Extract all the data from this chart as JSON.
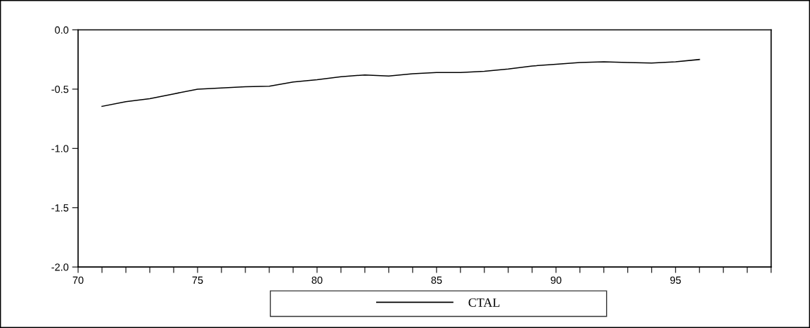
{
  "chart_data": {
    "type": "line",
    "x": [
      71,
      72,
      73,
      74,
      75,
      76,
      77,
      78,
      79,
      80,
      81,
      82,
      83,
      84,
      85,
      86,
      87,
      88,
      89,
      90,
      91,
      92,
      93,
      94,
      95,
      96
    ],
    "series": [
      {
        "name": "CTAL",
        "color": "#000000",
        "values": [
          -0.645,
          -0.605,
          -0.58,
          -0.54,
          -0.5,
          -0.49,
          -0.48,
          -0.475,
          -0.44,
          -0.42,
          -0.395,
          -0.38,
          -0.39,
          -0.37,
          -0.36,
          -0.36,
          -0.35,
          -0.33,
          -0.305,
          -0.29,
          -0.275,
          -0.27,
          -0.275,
          -0.28,
          -0.27,
          -0.25
        ]
      }
    ],
    "xlim": [
      70,
      99
    ],
    "xticks": [
      70,
      {
        "value": 71,
        "label": null
      },
      {
        "value": 72,
        "label": null
      },
      {
        "value": 73,
        "label": null
      },
      {
        "value": 74,
        "label": null
      },
      75,
      {
        "value": 76,
        "label": null
      },
      {
        "value": 77,
        "label": null
      },
      {
        "value": 78,
        "label": null
      },
      {
        "value": 79,
        "label": null
      },
      80,
      {
        "value": 81,
        "label": null
      },
      {
        "value": 82,
        "label": null
      },
      {
        "value": 83,
        "label": null
      },
      {
        "value": 84,
        "label": null
      },
      85,
      {
        "value": 86,
        "label": null
      },
      {
        "value": 87,
        "label": null
      },
      {
        "value": 88,
        "label": null
      },
      {
        "value": 89,
        "label": null
      },
      90,
      {
        "value": 91,
        "label": null
      },
      {
        "value": 92,
        "label": null
      },
      {
        "value": 93,
        "label": null
      },
      {
        "value": 94,
        "label": null
      },
      95,
      {
        "value": 96,
        "label": null
      },
      {
        "value": 97,
        "label": null
      },
      {
        "value": 98,
        "label": null
      },
      {
        "value": 99,
        "label": null
      }
    ],
    "ylim": [
      -2.0,
      0.0
    ],
    "yticks": [
      {
        "value": 0.0,
        "label": "0.0"
      },
      {
        "value": -0.5,
        "label": "-0.5"
      },
      {
        "value": -1.0,
        "label": "-1.0"
      },
      {
        "value": -1.5,
        "label": "-1.5"
      },
      {
        "value": -2.0,
        "label": "-2.0"
      }
    ],
    "grid": false,
    "legend": "bottom",
    "marker": "none",
    "line_style": "solid"
  }
}
